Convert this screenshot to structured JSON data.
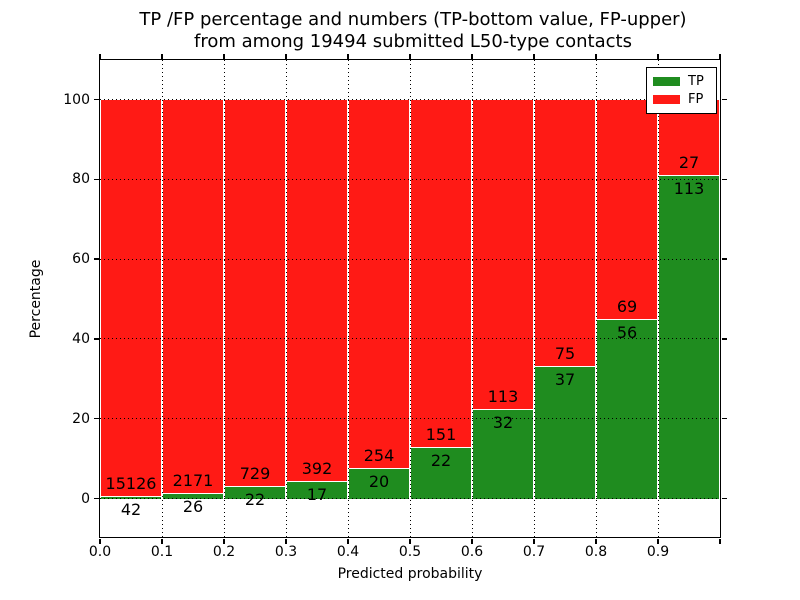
{
  "title": {
    "line1": "TP /FP percentage and numbers (TP-bottom value, FP-upper)",
    "line2": "from among 19494 submitted L50-type contacts"
  },
  "chart_data": {
    "type": "bar",
    "stacked": true,
    "normalized_to_percent": true,
    "title": "TP /FP percentage and numbers (TP-bottom value, FP-upper) from among 19494 submitted L50-type contacts",
    "xlabel": "Predicted probability",
    "ylabel": "Percentage",
    "total_contacts": 19494,
    "bins": [
      "0.0-0.1",
      "0.1-0.2",
      "0.2-0.3",
      "0.3-0.4",
      "0.4-0.5",
      "0.5-0.6",
      "0.6-0.7",
      "0.7-0.8",
      "0.8-0.9",
      "0.9-1.0"
    ],
    "series": [
      {
        "name": "TP",
        "color": "#1f8c1f",
        "counts": [
          42,
          26,
          22,
          17,
          20,
          22,
          32,
          37,
          56,
          113
        ]
      },
      {
        "name": "FP",
        "color": "#ff1a15",
        "counts": [
          15126,
          2171,
          729,
          392,
          254,
          151,
          113,
          75,
          69,
          27
        ]
      }
    ],
    "tp_percent": [
      0.28,
      1.18,
      2.93,
      4.16,
      7.3,
      12.72,
      22.07,
      33.04,
      44.8,
      80.71
    ],
    "xticks": [
      "0.0",
      "0.1",
      "0.2",
      "0.3",
      "0.4",
      "0.5",
      "0.6",
      "0.7",
      "0.8",
      "0.9"
    ],
    "yticks": [
      0,
      20,
      40,
      60,
      80,
      100
    ],
    "xlim": [
      0.0,
      1.0
    ],
    "ylim": [
      -10.5,
      110.5
    ],
    "grid": "dotted black, drawn over bars",
    "bar_edge_color": "#ffffff",
    "legend": {
      "position": "upper right",
      "entries": [
        {
          "label": "TP",
          "color": "#1f8c1f"
        },
        {
          "label": "FP",
          "color": "#ff1a15"
        }
      ]
    }
  },
  "colors": {
    "tp": "#1f8c1f",
    "fp": "#ff1a15",
    "background": "#ffffff",
    "frame": "#000000",
    "text": "#000000"
  }
}
